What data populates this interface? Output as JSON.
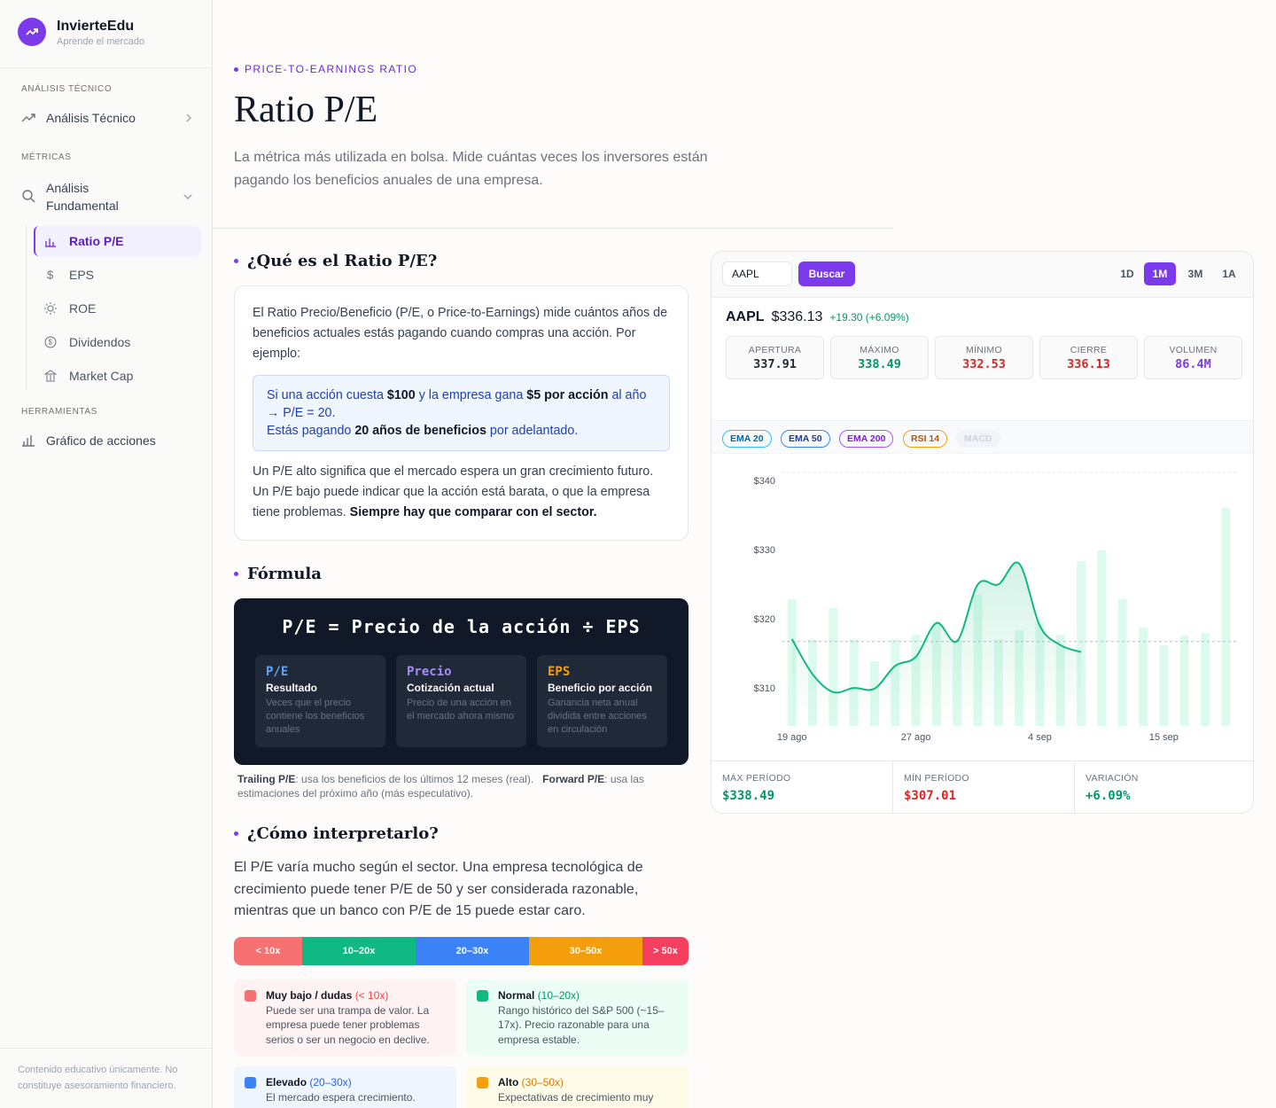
{
  "sidebar": {
    "brand": "InvierteEdu",
    "tagline": "Aprende el mercado",
    "sections": [
      {
        "heading": "ANÁLISIS TÉCNICO",
        "item": "Análisis Técnico"
      },
      {
        "heading": "MÉTRICAS",
        "item": "Análisis Fundamental",
        "subitems": [
          "Ratio P/E",
          "EPS",
          "ROE",
          "Dividendos",
          "Market Cap"
        ]
      },
      {
        "heading": "HERRAMIENTAS",
        "item": "Gráfico de acciones"
      }
    ],
    "footer": "Contenido educativo únicamente. No constituye asesoramiento financiero."
  },
  "header": {
    "eyebrow": "PRICE-TO-EARNINGS RATIO",
    "title": "Ratio P/E",
    "lead": "La métrica más utilizada en bolsa. Mide cuántas veces los inversores están pagando los beneficios anuales de una empresa."
  },
  "what": {
    "heading": "¿Qué es el Ratio P/E?",
    "intro": "El Ratio Precio/Beneficio (P/E, o Price-to-Earnings) mide cuántos años de beneficios actuales estás pagando cuando compras una acción. Por ejemplo:",
    "example": [
      [
        "Si una acción cuesta ",
        "$100",
        " y la empresa gana ",
        "$5 por acción",
        " al año → P/E = 20."
      ],
      [
        "Estás pagando ",
        "20 años de beneficios",
        " por adelantado."
      ]
    ],
    "outro": [
      "Un P/E alto significa que el mercado espera un gran crecimiento futuro. Un P/E bajo puede indicar que la acción está barata, o que la empresa tiene problemas. ",
      "Siempre hay que comparar con el sector."
    ]
  },
  "formula": {
    "heading": "Fórmula",
    "expression": "P/E = Precio de la acción ÷ EPS",
    "terms": [
      {
        "symbol": "P/E",
        "name": "Resultado",
        "desc": "Veces que el precio contiene los beneficios anuales"
      },
      {
        "symbol": "Precio",
        "name": "Cotización actual",
        "desc": "Precio de una acción en el mercado ahora mismo"
      },
      {
        "symbol": "EPS",
        "name": "Beneficio por acción",
        "desc": "Ganancia neta anual dividida entre acciones en circulación"
      }
    ],
    "note": [
      "Trailing P/E",
      ": usa los beneficios de los últimos 12 meses (real).",
      "Forward P/E",
      ": usa las estimaciones del próximo año (más especulativo)."
    ]
  },
  "interpret": {
    "heading": "¿Cómo interpretarlo?",
    "text": "El P/E varía mucho según el sector. Una empresa tecnológica de crecimiento puede tener P/E de 50 y ser considerada razonable, mientras que un banco con P/E de 15 puede estar caro.",
    "scale": [
      "< 10x",
      "10–20x",
      "20–30x",
      "30–50x",
      "> 50x"
    ],
    "cards": [
      {
        "title": "Muy bajo / dudas",
        "range": "(< 10x)",
        "text": "Puede ser una trampa de valor. La empresa puede tener problemas serios o ser un negocio en declive."
      },
      {
        "title": "Normal",
        "range": "(10–20x)",
        "text": "Rango histórico del S&P 500 (~15–17x). Precio razonable para una empresa estable."
      },
      {
        "title": "Elevado",
        "range": "(20–30x)",
        "text": "El mercado espera crecimiento."
      },
      {
        "title": "Alto",
        "range": "(30–50x)",
        "text": "Expectativas de crecimiento muy"
      }
    ]
  },
  "widget": {
    "ticker": "AAPL",
    "button": "Buscar",
    "ranges": [
      "1D",
      "1M",
      "3M",
      "1A"
    ],
    "quote": {
      "symbol": "AAPL",
      "price": "$336.13",
      "change": "+19.30 (+6.09%)"
    },
    "stats": [
      {
        "label": "APERTURA",
        "value": "337.91"
      },
      {
        "label": "MÁXIMO",
        "value": "338.49"
      },
      {
        "label": "MÍNIMO",
        "value": "332.53"
      },
      {
        "label": "CIERRE",
        "value": "336.13"
      },
      {
        "label": "VOLUMEN",
        "value": "86.4M"
      }
    ],
    "indicators": [
      "EMA 20",
      "EMA 50",
      "EMA 200",
      "RSI 14",
      "MACD"
    ],
    "chart_data": {
      "type": "line",
      "x": [
        "19 ago",
        null,
        null,
        null,
        null,
        null,
        "27 ago",
        null,
        null,
        null,
        null,
        null,
        "4 sep",
        null,
        null,
        null,
        null,
        null,
        "15 sep",
        null,
        null,
        null
      ],
      "series": [
        {
          "color": "#10b981",
          "values": [
            317.2,
            312.1,
            309.5,
            310.1,
            310.0,
            313.3,
            314.6,
            319.5,
            316.9,
            325.1,
            325.1,
            328.1,
            319.1,
            316.3,
            315.3,
            null,
            null,
            null,
            null,
            null,
            null,
            null
          ]
        },
        {
          "type": "bar",
          "axis": "y2",
          "color": "#d1fae5",
          "values": [
            50,
            34.3,
            46.5,
            34.3,
            25.5,
            34.3,
            36,
            41.3,
            34.3,
            51.7,
            34.3,
            37.8,
            41.3,
            36,
            65,
            69.2,
            50,
            38.8,
            31.8,
            35.7,
            36.7,
            86
          ]
        }
      ],
      "ylim": [
        304.6,
        341.3
      ],
      "yticks": [
        {
          "value": 310,
          "label": "$310"
        },
        {
          "value": 320,
          "label": "$320"
        },
        {
          "value": 330,
          "label": "$330"
        },
        {
          "value": 340,
          "label": "$340"
        }
      ],
      "y2lim": [
        0,
        100
      ],
      "reference_line": 316.83
    },
    "summary": [
      {
        "label": "MÁX PERÍODO",
        "value": "$338.49"
      },
      {
        "label": "MÍN PERÍODO",
        "value": "$307.01"
      },
      {
        "label": "VARIACIÓN",
        "value": "+6.09%"
      }
    ]
  }
}
